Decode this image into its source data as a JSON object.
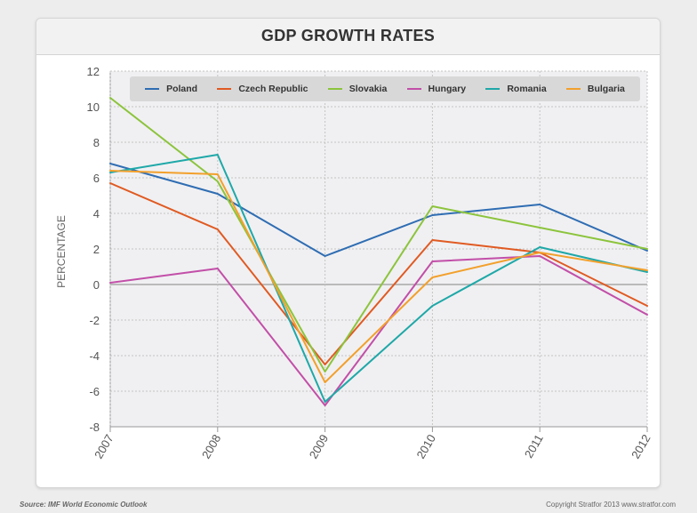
{
  "footer": {
    "source": "Source: IMF World Economic Outlook",
    "copyright": "Copyright Stratfor 2013    www.stratfor.com"
  },
  "chart_data": {
    "type": "line",
    "title": "GDP GROWTH RATES",
    "xlabel": "",
    "ylabel": "PERCENTAGE",
    "x": [
      "2007",
      "2008",
      "2009",
      "2010",
      "2011",
      "2012"
    ],
    "ylim": [
      -8,
      12
    ],
    "yticks": [
      12,
      10,
      8,
      6,
      4,
      2,
      0,
      -2,
      -4,
      -6,
      -8
    ],
    "grid": true,
    "legend_position": "top",
    "series": [
      {
        "name": "Poland",
        "color": "#2f6db3",
        "values": [
          6.8,
          5.1,
          1.6,
          3.9,
          4.5,
          1.9
        ]
      },
      {
        "name": "Czech Republic",
        "color": "#e05a22",
        "values": [
          5.7,
          3.1,
          -4.5,
          2.5,
          1.8,
          -1.2
        ]
      },
      {
        "name": "Slovakia",
        "color": "#8cc43c",
        "values": [
          10.5,
          5.8,
          -4.9,
          4.4,
          3.2,
          2.0
        ]
      },
      {
        "name": "Hungary",
        "color": "#c24fa8",
        "values": [
          0.1,
          0.9,
          -6.8,
          1.3,
          1.6,
          -1.7
        ]
      },
      {
        "name": "Romania",
        "color": "#1fa8a8",
        "values": [
          6.3,
          7.3,
          -6.6,
          -1.2,
          2.1,
          0.7
        ]
      },
      {
        "name": "Bulgaria",
        "color": "#f2a02c",
        "values": [
          6.4,
          6.2,
          -5.5,
          0.4,
          1.8,
          0.8
        ]
      }
    ]
  }
}
